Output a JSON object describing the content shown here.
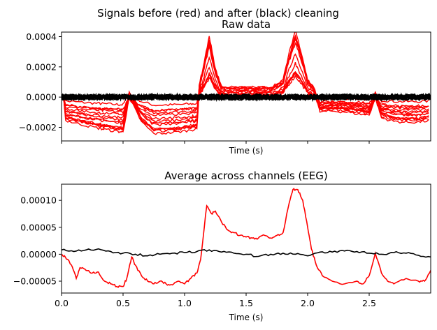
{
  "figure": {
    "suptitle": "Signals before (red) and after (black) cleaning"
  },
  "colors": {
    "before": "#ff0000",
    "after": "#000000"
  },
  "chart_data": [
    {
      "type": "line",
      "title": "Raw data",
      "xlabel": "Time (s)",
      "ylabel": "",
      "xlim": [
        0,
        3.0
      ],
      "ylim": [
        -0.00029,
        0.00043
      ],
      "yticks": [
        -0.0002,
        0.0,
        0.0002,
        0.0004
      ],
      "ytick_labels": [
        "−0.0002",
        "0.0000",
        "0.0002",
        "0.0004"
      ],
      "xticks": [
        0,
        0.5,
        1.0,
        1.5,
        2.0,
        2.5
      ],
      "xtick_labels_shown": false,
      "grid": false,
      "series_groups": [
        {
          "name": "before",
          "color": "#ff0000",
          "channel_count": 14,
          "peak_value": 0.00039,
          "min_value": -0.00024,
          "x": [
            0,
            0.1,
            0.2,
            0.3,
            0.35,
            0.45,
            0.5,
            0.55,
            0.65,
            0.75,
            0.85,
            0.95,
            1.05,
            1.1,
            1.12,
            1.15,
            1.2,
            1.25,
            1.3,
            1.4,
            1.5,
            1.6,
            1.7,
            1.8,
            1.85,
            1.9,
            1.95,
            2.0,
            2.05,
            2.1,
            2.2,
            2.3,
            2.4,
            2.5,
            2.55,
            2.6,
            2.7,
            2.8,
            2.9,
            3.0
          ]
        },
        {
          "name": "after",
          "color": "#000000",
          "channel_count": 14,
          "amplitude": 2e-05
        }
      ]
    },
    {
      "type": "line",
      "title": "Average across channels (EEG)",
      "xlabel": "Time (s)",
      "ylabel": "",
      "xlim": [
        0,
        3.0
      ],
      "ylim": [
        -7.2e-05,
        0.00013
      ],
      "yticks": [
        -5e-05,
        0.0,
        5e-05,
        0.0001
      ],
      "ytick_labels": [
        "−0.00005",
        "0.00000",
        "0.00005",
        "0.00010"
      ],
      "xticks": [
        0,
        0.5,
        1.0,
        1.5,
        2.0,
        2.5
      ],
      "xtick_labels": [
        "0.0",
        "0.5",
        "1.0",
        "1.5",
        "2.0",
        "2.5"
      ],
      "grid": false,
      "series": [
        {
          "name": "before",
          "color": "#ff0000",
          "x": [
            0,
            0.03,
            0.08,
            0.12,
            0.15,
            0.2,
            0.25,
            0.3,
            0.35,
            0.4,
            0.45,
            0.5,
            0.53,
            0.57,
            0.6,
            0.65,
            0.7,
            0.75,
            0.8,
            0.85,
            0.9,
            0.95,
            1.0,
            1.05,
            1.1,
            1.13,
            1.18,
            1.22,
            1.25,
            1.3,
            1.35,
            1.4,
            1.45,
            1.5,
            1.55,
            1.6,
            1.65,
            1.7,
            1.75,
            1.8,
            1.85,
            1.88,
            1.92,
            1.96,
            2.0,
            2.03,
            2.07,
            2.12,
            2.2,
            2.3,
            2.4,
            2.45,
            2.5,
            2.55,
            2.6,
            2.65,
            2.7,
            2.8,
            2.9,
            2.95,
            3.0
          ],
          "values": [
            -2e-06,
            -5e-06,
            -2e-05,
            -4.5e-05,
            -2.5e-05,
            -3e-05,
            -3.5e-05,
            -3.3e-05,
            -5e-05,
            -5.5e-05,
            -6e-05,
            -6e-05,
            -4.5e-05,
            -5e-06,
            -2e-05,
            -4e-05,
            -5e-05,
            -5.5e-05,
            -5e-05,
            -5.5e-05,
            -5.7e-05,
            -5e-05,
            -5.5e-05,
            -4.5e-05,
            -3.5e-05,
            -1e-05,
            9e-05,
            7.5e-05,
            8e-05,
            6e-05,
            4.5e-05,
            4e-05,
            3.5e-05,
            3.2e-05,
            3e-05,
            3e-05,
            3.5e-05,
            3e-05,
            3.5e-05,
            4e-05,
            9.5e-05,
            0.00012,
            0.00012,
            0.0001,
            5e-05,
            1e-05,
            -2e-05,
            -4e-05,
            -5e-05,
            -5.5e-05,
            -5e-05,
            -5.5e-05,
            -4e-05,
            2e-06,
            -3.5e-05,
            -5e-05,
            -5.5e-05,
            -4.5e-05,
            -5e-05,
            -5e-05,
            -3e-05
          ]
        },
        {
          "name": "after",
          "color": "#000000",
          "x": [
            0,
            0.1,
            0.2,
            0.3,
            0.4,
            0.5,
            0.6,
            0.7,
            0.8,
            0.9,
            1.0,
            1.1,
            1.2,
            1.3,
            1.4,
            1.5,
            1.6,
            1.7,
            1.8,
            1.9,
            2.0,
            2.1,
            2.2,
            2.3,
            2.4,
            2.5,
            2.6,
            2.7,
            2.8,
            2.9,
            3.0
          ],
          "values": [
            8e-06,
            5e-06,
            8e-06,
            1e-05,
            5e-06,
            2e-06,
            0.0,
            -3e-06,
            0.0,
            2e-06,
            3e-06,
            5e-06,
            8e-06,
            4e-06,
            2e-06,
            0.0,
            -4e-06,
            0.0,
            2e-06,
            0.0,
            -3e-06,
            4e-06,
            4e-06,
            6e-06,
            5e-06,
            2e-06,
            0.0,
            3e-06,
            2e-06,
            -2e-06,
            -5e-06
          ]
        }
      ]
    }
  ]
}
